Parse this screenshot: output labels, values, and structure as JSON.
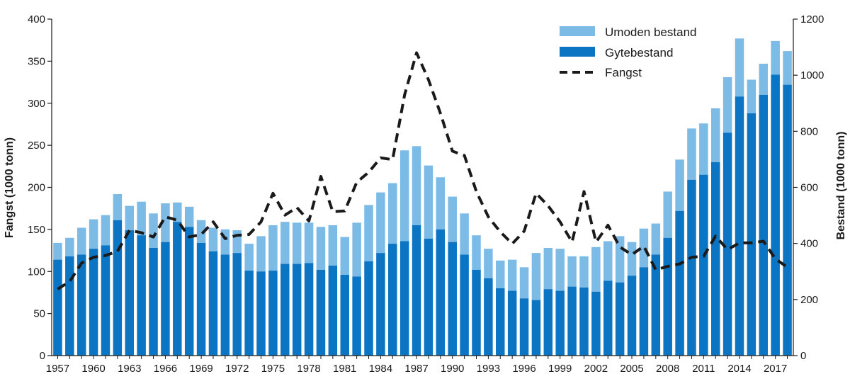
{
  "chart_data": {
    "type": "bar",
    "subtype": "stacked bar with line overlay",
    "years": [
      1957,
      1958,
      1959,
      1960,
      1961,
      1962,
      1963,
      1964,
      1965,
      1966,
      1967,
      1968,
      1969,
      1970,
      1971,
      1972,
      1973,
      1974,
      1975,
      1976,
      1977,
      1978,
      1979,
      1980,
      1981,
      1982,
      1983,
      1984,
      1985,
      1986,
      1987,
      1988,
      1989,
      1990,
      1991,
      1992,
      1993,
      1994,
      1995,
      1996,
      1997,
      1998,
      1999,
      2000,
      2001,
      2002,
      2003,
      2004,
      2005,
      2006,
      2007,
      2008,
      2009,
      2010,
      2011,
      2012,
      2013,
      2014,
      2015,
      2016,
      2017,
      2018
    ],
    "x_tick_labels": [
      "1957",
      "1960",
      "1963",
      "1966",
      "1969",
      "1972",
      "1975",
      "1978",
      "1981",
      "1984",
      "1987",
      "1990",
      "1993",
      "1996",
      "1999",
      "2002",
      "2005",
      "2008",
      "2011",
      "2014",
      "2017"
    ],
    "series": [
      {
        "name": "Gytebestand",
        "axis": "right",
        "kind": "bar",
        "color": "#0b74c3",
        "values": [
          342,
          354,
          360,
          381,
          393,
          483,
          447,
          429,
          384,
          405,
          477,
          459,
          402,
          372,
          360,
          366,
          303,
          300,
          303,
          327,
          327,
          330,
          306,
          321,
          288,
          282,
          336,
          366,
          399,
          408,
          465,
          417,
          450,
          405,
          360,
          306,
          276,
          240,
          231,
          204,
          198,
          237,
          231,
          246,
          243,
          228,
          267,
          261,
          285,
          315,
          360,
          420,
          516,
          627,
          645,
          690,
          795,
          924,
          864,
          930,
          1002,
          966
        ]
      },
      {
        "name": "Umoden bestand",
        "axis": "right",
        "kind": "bar",
        "color": "#7dbbe7",
        "stack_totals": [
          402,
          420,
          456,
          486,
          501,
          576,
          534,
          549,
          507,
          543,
          546,
          531,
          483,
          456,
          450,
          447,
          399,
          426,
          465,
          477,
          474,
          474,
          459,
          465,
          423,
          474,
          537,
          582,
          615,
          732,
          747,
          678,
          636,
          567,
          507,
          429,
          381,
          339,
          342,
          315,
          366,
          384,
          381,
          354,
          354,
          387,
          408,
          426,
          405,
          453,
          471,
          585,
          699,
          810,
          828,
          882,
          993,
          1131,
          984,
          1041,
          1122,
          1086
        ]
      },
      {
        "name": "Fangst",
        "axis": "left",
        "kind": "line",
        "style": "dashed",
        "color": "#1a1a1a",
        "values": [
          79,
          88,
          110,
          117,
          119,
          124,
          149,
          146,
          141,
          165,
          161,
          141,
          144,
          159,
          139,
          143,
          144,
          159,
          193,
          167,
          176,
          160,
          213,
          171,
          172,
          206,
          218,
          235,
          233,
          310,
          360,
          328,
          288,
          243,
          238,
          195,
          165,
          147,
          133,
          148,
          193,
          178,
          159,
          135,
          195,
          135,
          155,
          129,
          120,
          130,
          102,
          106,
          109,
          117,
          118,
          142,
          126,
          134,
          134,
          136,
          115,
          105
        ]
      }
    ],
    "left_axis": {
      "title": "Fangst (1000 tonn)",
      "min": 0,
      "max": 400,
      "ticks": [
        0,
        50,
        100,
        150,
        200,
        250,
        300,
        350,
        400
      ]
    },
    "right_axis": {
      "title": "Bestand (1000 tonn)",
      "min": 0,
      "max": 1200,
      "ticks": [
        0,
        200,
        400,
        600,
        800,
        1000,
        1200
      ]
    },
    "legend": {
      "placement": "top-right",
      "entries": [
        "Umoden bestand",
        "Gytebestand",
        "Fangst"
      ]
    }
  }
}
